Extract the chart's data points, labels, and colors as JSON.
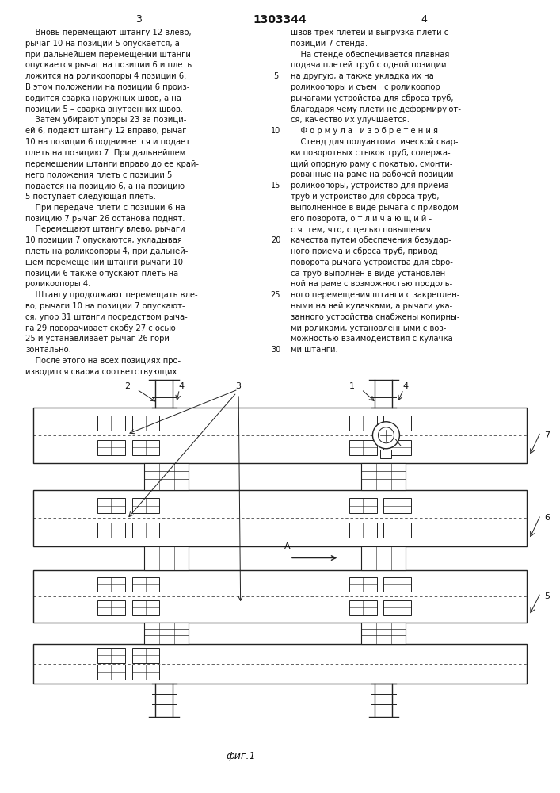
{
  "page_width": 7.07,
  "page_height": 10.0,
  "bg_color": "#ffffff",
  "text_color": "#111111",
  "line_color": "#222222",
  "header_page_left": "3",
  "header_title": "1303344",
  "header_page_right": "4",
  "col1_text": [
    "    Вновь перемещают штангу 12 влево,",
    "рычаг 10 на позиции 5 опускается, а",
    "при дальнейшем перемещении штанги",
    "опускается рычаг на позиции 6 и плеть",
    "ложится на роликоопоры 4 позиции 6.",
    "В этом положении на позиции 6 произ-",
    "водится сварка наружных швов, а на",
    "позиции 5 – сварка внутренних швов.",
    "    Затем убирают упоры 23 за позици-",
    "ей 6, подают штангу 12 вправо, рычаг",
    "10 на позиции 6 поднимается и подает",
    "плеть на позицию 7. При дальнейшем",
    "перемещении штанги вправо до ее край-",
    "него положения плеть с позиции 5",
    "подается на позицию 6, а на позицию",
    "5 поступает следующая плеть.",
    "    При передаче плети с позиции 6 на",
    "позицию 7 рычаг 26 останова поднят.",
    "    Перемещают штангу влево, рычаги",
    "10 позиции 7 опускаются, укладывая",
    "плеть на роликоопоры 4, при дальней-",
    "шем перемещении штанги рычаги 10",
    "позиции 6 также опускают плеть на",
    "роликоопоры 4.",
    "    Штангу продолжают перемещать вле-",
    "во, рычаги 10 на позиции 7 опускают-",
    "ся, упор 31 штанги посредством рыча-",
    "га 29 поворачивает скобу 27 с осью",
    "25 и устанавливает рычаг 26 гори-",
    "зонтально.",
    "    После этого на всех позициях про-",
    "изводится сварка соответствующих"
  ],
  "col2_text": [
    "швов трех плетей и выгрузка плети с",
    "позиции 7 стенда.",
    "    На стенде обеспечивается плавная",
    "подача плетей труб с одной позиции",
    "на другую, а также укладка их на",
    "роликоопоры и съем   с роликоопор",
    "рычагами устройства для сброса труб,",
    "благодаря чему плети не деформируют-",
    "ся, качество их улучшается.",
    "    Ф о р м у л а   и з о б р е т е н и я",
    "    Стенд для полуавтоматической свар-",
    "ки поворотных стыков труб, содержа-",
    "щий опорную раму с покатью, смонти-",
    "рованные на раме на рабочей позиции",
    "роликоопоры, устройство для приема",
    "труб и устройство для сброса труб,",
    "выполненное в виде рычага с приводом",
    "его поворота, о т л и ч а ю щ и й -",
    "с я  тем, что, с целью повышения",
    "качества путем обеспечения безудар-",
    "ного приема и сброса труб, привод",
    "поворота рычага устройства для сбро-",
    "са труб выполнен в виде установлен-",
    "ной на раме с возможностью продоль-",
    "ного перемещения штанги с закреплен-",
    "ными на ней кулачками, а рычаги ука-",
    "занного устройства снабжены копирны-",
    "ми роликами, установленными с воз-",
    "можностью взаимодействия с кулачка-",
    "ми штанги."
  ],
  "line_numbers": [
    5,
    10,
    15,
    20,
    25,
    30
  ],
  "fig_label": "фиг.1",
  "text_font": "Courier New",
  "text_fontsize": 7.2,
  "ann_fontsize": 8.0
}
